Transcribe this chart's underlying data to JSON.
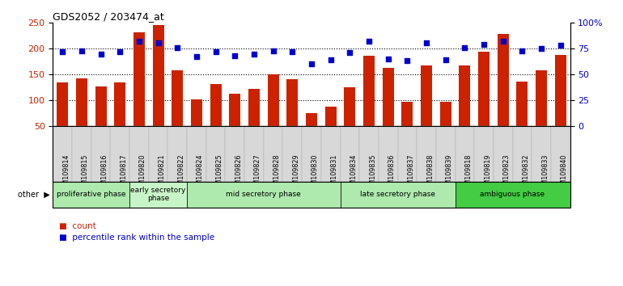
{
  "title": "GDS2052 / 203474_at",
  "samples": [
    "GSM109814",
    "GSM109815",
    "GSM109816",
    "GSM109817",
    "GSM109820",
    "GSM109821",
    "GSM109822",
    "GSM109824",
    "GSM109825",
    "GSM109826",
    "GSM109827",
    "GSM109828",
    "GSM109829",
    "GSM109830",
    "GSM109831",
    "GSM109834",
    "GSM109835",
    "GSM109836",
    "GSM109837",
    "GSM109838",
    "GSM109839",
    "GSM109818",
    "GSM109819",
    "GSM109823",
    "GSM109832",
    "GSM109833",
    "GSM109840"
  ],
  "counts": [
    134,
    143,
    127,
    135,
    232,
    246,
    158,
    101,
    131,
    113,
    122,
    150,
    140,
    75,
    87,
    125,
    186,
    162,
    97,
    167,
    97,
    167,
    194,
    229,
    136,
    158,
    187
  ],
  "percentiles": [
    72,
    73,
    70,
    72,
    82,
    81,
    76,
    67,
    72,
    68,
    70,
    73,
    72,
    60,
    64,
    71,
    82,
    65,
    63,
    81,
    64,
    76,
    79,
    82,
    73,
    75,
    78
  ],
  "phases": [
    {
      "label": "proliferative phase",
      "start": 0,
      "end": 4,
      "color": "#aeeaae"
    },
    {
      "label": "early secretory\nphase",
      "start": 4,
      "end": 7,
      "color": "#c8f5c8"
    },
    {
      "label": "mid secretory phase",
      "start": 7,
      "end": 15,
      "color": "#aeeaae"
    },
    {
      "label": "late secretory phase",
      "start": 15,
      "end": 21,
      "color": "#aeeaae"
    },
    {
      "label": "ambiguous phase",
      "start": 21,
      "end": 27,
      "color": "#44cc44"
    }
  ],
  "ylim_left": [
    50,
    250
  ],
  "ylim_right": [
    0,
    100
  ],
  "yticks_left": [
    50,
    100,
    150,
    200,
    250
  ],
  "yticks_right": [
    0,
    25,
    50,
    75,
    100
  ],
  "ytick_labels_right": [
    "0",
    "25",
    "50",
    "75",
    "100%"
  ],
  "bar_color": "#CC2200",
  "dot_color": "#0000CC",
  "grid_color": "#000000",
  "background_color": "#FFFFFF",
  "tick_label_color_left": "#CC2200",
  "tick_label_color_right": "#0000CC",
  "xticklabel_bg": "#d8d8d8"
}
